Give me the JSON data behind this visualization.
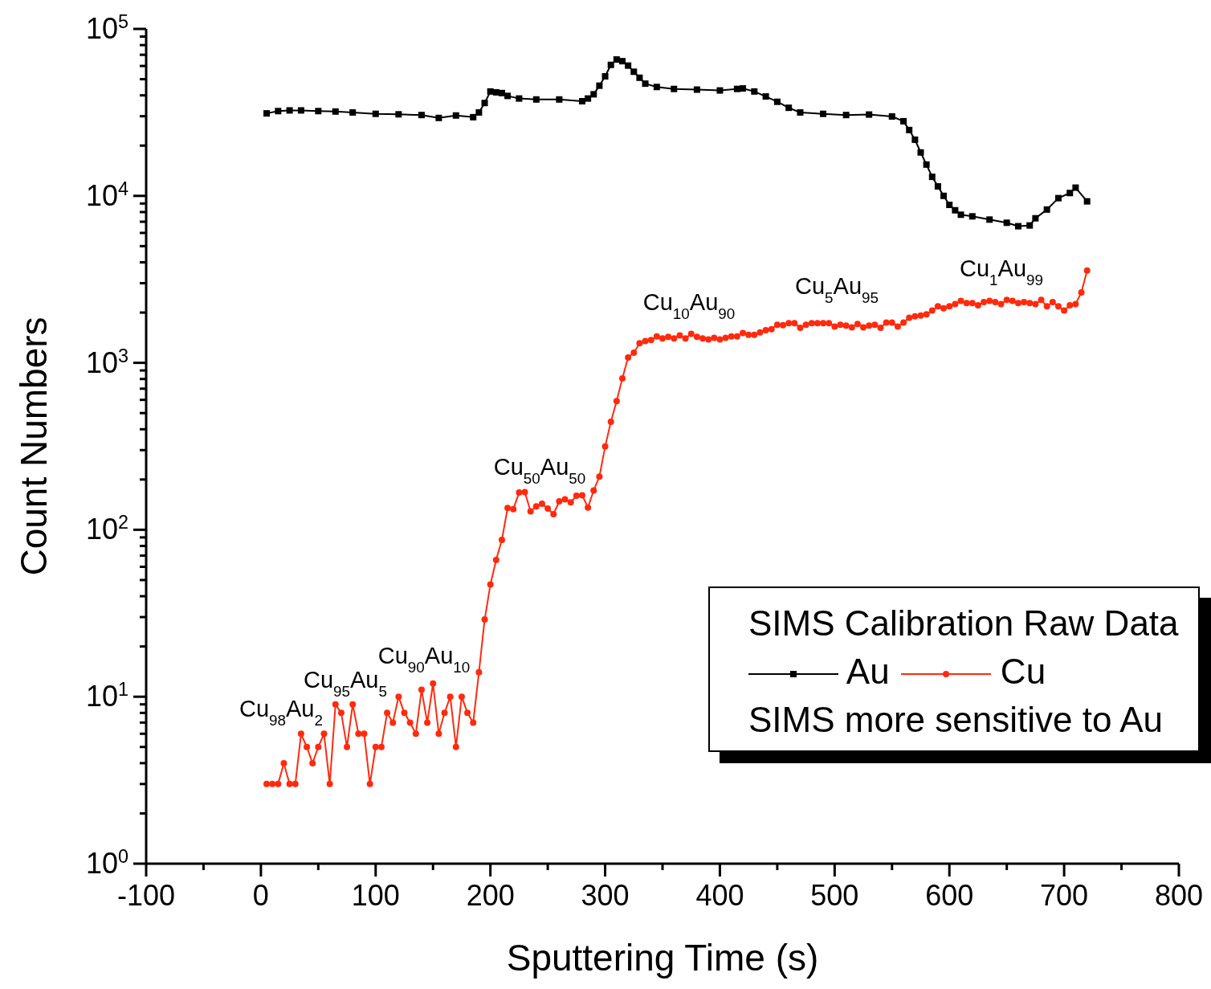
{
  "chart_data": {
    "type": "line",
    "xlabel": "Sputtering Time (s)",
    "ylabel": "Count Numbers",
    "legend_title": "SIMS Calibration Raw Data",
    "log": "y",
    "legend": "bottom right",
    "xlim": [
      -100,
      800
    ],
    "xticks": [
      -100,
      {
        "value": -50,
        "label": null
      },
      0,
      {
        "value": 50,
        "label": null
      },
      100,
      {
        "value": 150,
        "label": null
      },
      200,
      {
        "value": 250,
        "label": null
      },
      300,
      {
        "value": 350,
        "label": null
      },
      400,
      {
        "value": 450,
        "label": null
      },
      500,
      {
        "value": 550,
        "label": null
      },
      600,
      {
        "value": 650,
        "label": null
      },
      700,
      {
        "value": 750,
        "label": null
      },
      800
    ],
    "ylim": [
      1,
      100000
    ],
    "yticks": [
      {
        "value": 1,
        "label": "10$^{0}$"
      },
      {
        "value": 2,
        "label": null
      },
      {
        "value": 3,
        "label": null
      },
      {
        "value": 4,
        "label": null
      },
      {
        "value": 5,
        "label": null
      },
      {
        "value": 6,
        "label": null
      },
      {
        "value": 7,
        "label": null
      },
      {
        "value": 8,
        "label": null
      },
      {
        "value": 9,
        "label": null
      },
      {
        "value": 10,
        "label": "10$^{1}$"
      },
      {
        "value": 20,
        "label": null
      },
      {
        "value": 30,
        "label": null
      },
      {
        "value": 40,
        "label": null
      },
      {
        "value": 50,
        "label": null
      },
      {
        "value": 60,
        "label": null
      },
      {
        "value": 70,
        "label": null
      },
      {
        "value": 80,
        "label": null
      },
      {
        "value": 90,
        "label": null
      },
      {
        "value": 100,
        "label": "10$^{2}$"
      },
      {
        "value": 200,
        "label": null
      },
      {
        "value": 300,
        "label": null
      },
      {
        "value": 400,
        "label": null
      },
      {
        "value": 500,
        "label": null
      },
      {
        "value": 600,
        "label": null
      },
      {
        "value": 700,
        "label": null
      },
      {
        "value": 800,
        "label": null
      },
      {
        "value": 900,
        "label": null
      },
      {
        "value": 1000,
        "label": "10$^{3}$"
      },
      {
        "value": 2000,
        "label": null
      },
      {
        "value": 3000,
        "label": null
      },
      {
        "value": 4000,
        "label": null
      },
      {
        "value": 5000,
        "label": null
      },
      {
        "value": 6000,
        "label": null
      },
      {
        "value": 7000,
        "label": null
      },
      {
        "value": 8000,
        "label": null
      },
      {
        "value": 9000,
        "label": null
      },
      {
        "value": 10000,
        "label": "10$^{4}$"
      },
      {
        "value": 20000,
        "label": null
      },
      {
        "value": 30000,
        "label": null
      },
      {
        "value": 40000,
        "label": null
      },
      {
        "value": 50000,
        "label": null
      },
      {
        "value": 60000,
        "label": null
      },
      {
        "value": 70000,
        "label": null
      },
      {
        "value": 80000,
        "label": null
      },
      {
        "value": 90000,
        "label": null
      },
      {
        "value": 100000,
        "label": "10$^{5}$"
      }
    ],
    "series": [
      {
        "name": "Au",
        "color": "#000000",
        "marker": "square",
        "line_style": "solid",
        "x": [
          5,
          15,
          25,
          35,
          50,
          65,
          80,
          100,
          120,
          140,
          155,
          170,
          185,
          190,
          195,
          200,
          205,
          210,
          215,
          225,
          240,
          260,
          280,
          285,
          290,
          295,
          300,
          305,
          310,
          315,
          320,
          325,
          330,
          335,
          345,
          360,
          380,
          400,
          415,
          420,
          430,
          440,
          450,
          460,
          470,
          490,
          510,
          530,
          550,
          560,
          565,
          570,
          575,
          580,
          585,
          590,
          595,
          600,
          605,
          610,
          620,
          635,
          650,
          660,
          670,
          675,
          685,
          695,
          705,
          710,
          720
        ],
        "values": [
          31200,
          32200,
          32500,
          32500,
          32200,
          32000,
          31600,
          31000,
          30800,
          30500,
          29300,
          30300,
          29600,
          31600,
          36000,
          42200,
          41700,
          41300,
          39700,
          38300,
          37800,
          37800,
          36900,
          38300,
          40600,
          45700,
          52000,
          60900,
          65600,
          64100,
          60300,
          55400,
          51000,
          47000,
          44900,
          43700,
          43300,
          42800,
          43700,
          44000,
          42200,
          39400,
          36600,
          33700,
          31600,
          31000,
          30500,
          30700,
          29900,
          28000,
          24800,
          21700,
          18200,
          15400,
          13000,
          11400,
          10000,
          8830,
          8200,
          7710,
          7540,
          7210,
          6900,
          6580,
          6650,
          7340,
          8280,
          9690,
          10400,
          11200,
          9270
        ]
      },
      {
        "name": "Cu",
        "color": "#ff2a0e",
        "marker": "circle",
        "line_style": "solid",
        "x": [
          5,
          10,
          15,
          20,
          25,
          30,
          35,
          40,
          45,
          50,
          55,
          60,
          65,
          70,
          75,
          80,
          85,
          90,
          95,
          100,
          105,
          110,
          115,
          120,
          125,
          130,
          135,
          140,
          145,
          150,
          155,
          160,
          165,
          170,
          175,
          180,
          185,
          190,
          195,
          200,
          205,
          210,
          215,
          220,
          225,
          230,
          235,
          240,
          245,
          250,
          255,
          260,
          265,
          270,
          275,
          280,
          285,
          290,
          295,
          300,
          305,
          310,
          315,
          320,
          325,
          330,
          335,
          340,
          345,
          350,
          355,
          360,
          365,
          370,
          375,
          380,
          385,
          390,
          395,
          400,
          405,
          410,
          415,
          420,
          425,
          430,
          435,
          440,
          445,
          450,
          455,
          460,
          465,
          470,
          475,
          480,
          485,
          490,
          495,
          500,
          505,
          510,
          515,
          520,
          525,
          530,
          535,
          540,
          545,
          550,
          555,
          560,
          565,
          570,
          575,
          580,
          585,
          590,
          595,
          600,
          605,
          610,
          615,
          620,
          625,
          630,
          635,
          640,
          645,
          650,
          655,
          660,
          665,
          670,
          675,
          680,
          685,
          690,
          695,
          700,
          705,
          710,
          715,
          720
        ],
        "values": [
          3,
          3,
          3,
          4,
          3,
          3,
          6,
          5,
          4,
          5,
          6,
          3,
          9,
          8,
          5,
          9,
          6,
          6,
          3,
          5,
          5,
          8,
          7,
          10,
          8,
          7,
          6,
          11,
          7,
          12,
          6,
          8,
          10,
          5,
          10,
          8,
          7,
          14,
          29,
          47,
          66,
          87,
          135,
          133,
          167,
          168,
          129,
          138,
          143,
          134,
          124,
          148,
          152,
          146,
          160,
          161,
          136,
          172,
          208,
          315,
          443,
          589,
          807,
          1076,
          1150,
          1310,
          1350,
          1370,
          1440,
          1400,
          1430,
          1400,
          1460,
          1400,
          1490,
          1430,
          1400,
          1380,
          1410,
          1380,
          1410,
          1440,
          1440,
          1510,
          1470,
          1470,
          1520,
          1570,
          1590,
          1690,
          1680,
          1730,
          1730,
          1620,
          1690,
          1730,
          1730,
          1730,
          1730,
          1650,
          1690,
          1670,
          1630,
          1710,
          1630,
          1670,
          1690,
          1620,
          1740,
          1740,
          1650,
          1740,
          1860,
          1900,
          1920,
          1950,
          2060,
          2180,
          2120,
          2180,
          2250,
          2350,
          2280,
          2280,
          2210,
          2310,
          2350,
          2310,
          2250,
          2380,
          2350,
          2280,
          2310,
          2280,
          2250,
          2380,
          2180,
          2310,
          2180,
          2060,
          2210,
          2250,
          2640,
          3570
        ]
      }
    ],
    "annotations": [
      "Cu$_{98}$Au$_{2}$",
      "Cu$_{95}$Au$_{5}$",
      "Cu$_{90}$Au$_{10}$",
      "Cu$_{50}$Au$_{50}$",
      "Cu$_{10}$Au$_{90}$",
      "Cu$_{5}$Au$_{95}$",
      "Cu$_{1}$Au$_{99}$",
      "SIMS more sensitive to Au"
    ]
  }
}
